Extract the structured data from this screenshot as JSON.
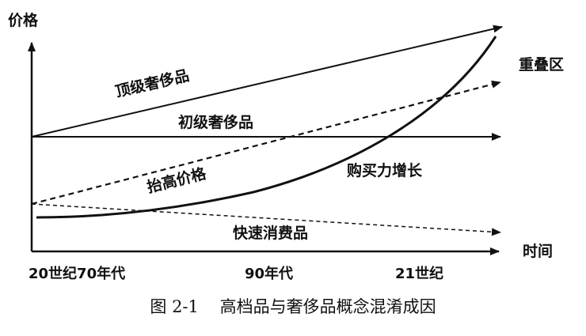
{
  "axes": {
    "y_label": "价格",
    "x_label": "时间"
  },
  "lines": {
    "top_luxury": "顶级奢侈品",
    "entry_luxury": "初级奢侈品",
    "raised_price": "抬高价格",
    "purchasing_power": "购买力增长",
    "fast_consumer": "快速消费品",
    "overlap_zone": "重叠区"
  },
  "x_ticks": [
    "20世纪70年代",
    "90年代",
    "21世纪"
  ],
  "caption": "图 2-1    高档品与奢侈品概念混淆成因",
  "colors": {
    "ink": "#111111",
    "background": "#ffffff"
  }
}
